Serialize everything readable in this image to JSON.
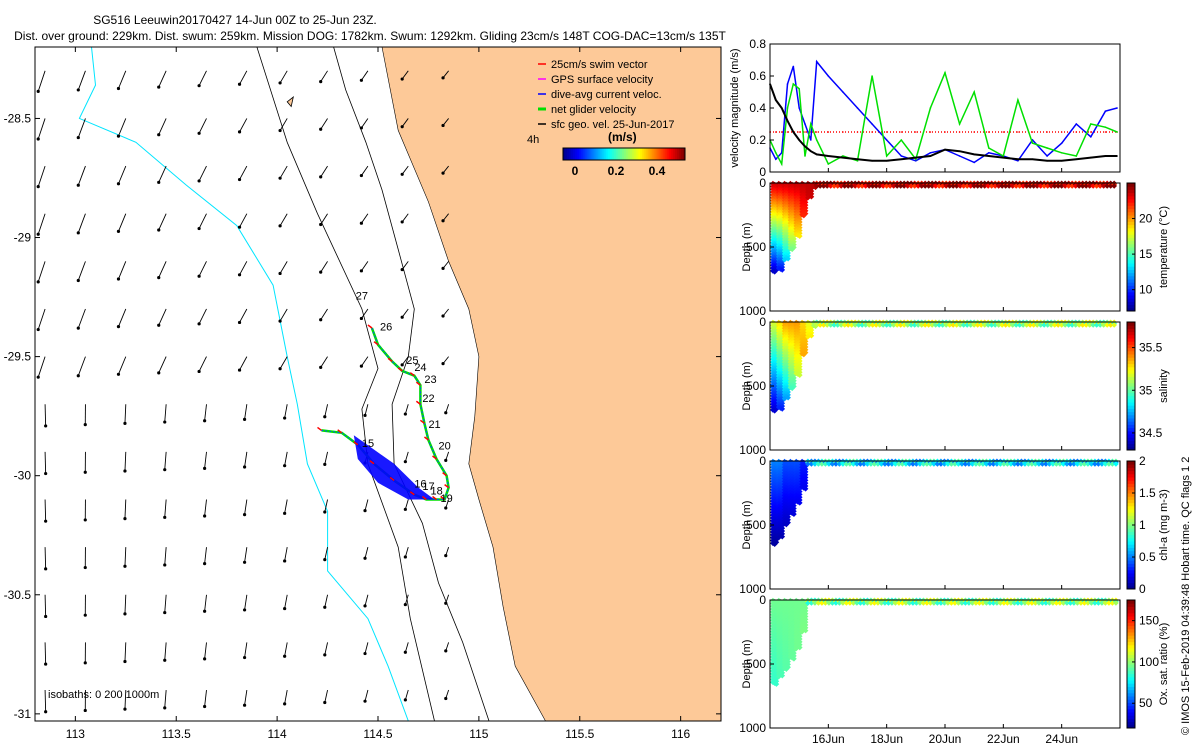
{
  "title": {
    "line1": "SG516 Leeuwin20170427 14-Jun 00Z to 25-Jun 23Z.",
    "line2": "Dist. over ground: 229km. Dist. swum: 259km. Mission DOG: 1782km. Swum: 1292km. Gliding 23cm/s 148T COG-DAC=13cm/s 135T"
  },
  "colors": {
    "land": "#FDC998",
    "isobath_200": "#00E5FF",
    "isobath_0_1000": "#000000",
    "swim": "#FF0000",
    "gps": "#FF00FF",
    "dac": "#0000FF",
    "net": "#00E000",
    "geo": "#000000"
  },
  "map": {
    "lon_ticks": [
      "113",
      "113.5",
      "114",
      "114.5",
      "115",
      "115.5",
      "116"
    ],
    "lat_ticks": [
      "-28.5",
      "-29",
      "-29.5",
      "-30",
      "-30.5",
      "-31"
    ],
    "isobaths_label": "isobaths: 0   200   1000m",
    "legend": [
      {
        "key": "swim",
        "label": "25cm/s swim vector"
      },
      {
        "key": "gps",
        "label": "GPS surface velocity"
      },
      {
        "key": "dac",
        "label": "dive-avg current veloc."
      },
      {
        "key": "net",
        "label": "net glider velocity"
      },
      {
        "key": "geo",
        "label": "sfc geo. vel. 25-Jun-2017"
      }
    ],
    "time_label": "4h",
    "colorbar_title": "(m/s)",
    "colorbar_ticks": [
      "0",
      "0.2",
      "0.4"
    ],
    "day_labels": [
      {
        "day": "27",
        "lon": 114.39,
        "lat": -29.26
      },
      {
        "day": "26",
        "lon": 114.51,
        "lat": -29.39
      },
      {
        "day": "25",
        "lon": 114.64,
        "lat": -29.53
      },
      {
        "day": "24",
        "lon": 114.68,
        "lat": -29.56
      },
      {
        "day": "23",
        "lon": 114.73,
        "lat": -29.61
      },
      {
        "day": "22",
        "lon": 114.72,
        "lat": -29.69
      },
      {
        "day": "21",
        "lon": 114.75,
        "lat": -29.8
      },
      {
        "day": "20",
        "lon": 114.8,
        "lat": -29.89
      },
      {
        "day": "19",
        "lon": 114.81,
        "lat": -30.11
      },
      {
        "day": "18",
        "lon": 114.76,
        "lat": -30.08
      },
      {
        "day": "17",
        "lon": 114.72,
        "lat": -30.06
      },
      {
        "day": "16",
        "lon": 114.68,
        "lat": -30.05
      },
      {
        "day": "15",
        "lon": 114.42,
        "lat": -29.88
      }
    ]
  },
  "chart_data": [
    {
      "type": "line",
      "title": "velocity magnitude",
      "ylabel": "velocity magnitude (m/s)",
      "ylim": [
        0,
        0.8
      ],
      "yticks": [
        "0",
        "0.2",
        "0.4",
        "0.6",
        "0.8"
      ],
      "x_days": [
        14,
        14.2,
        14.4,
        14.6,
        14.8,
        15.0,
        15.2,
        15.4,
        15.6,
        16.0,
        16.5,
        17.0,
        17.5,
        18.0,
        18.5,
        19.0,
        19.5,
        20.0,
        20.5,
        21.0,
        21.5,
        22.0,
        22.5,
        23.0,
        23.5,
        24.0,
        24.5,
        25.0,
        25.5,
        25.9
      ],
      "series": [
        {
          "name": "swim",
          "color": "#FF0000",
          "values": [
            0.25,
            0.25,
            0.25,
            0.25,
            0.25,
            0.25,
            0.25,
            0.25,
            0.25,
            0.25,
            0.25,
            0.25,
            0.25,
            0.25,
            0.25,
            0.25,
            0.25,
            0.25,
            0.25,
            0.25,
            0.25,
            0.25,
            0.25,
            0.25,
            0.25,
            0.25,
            0.25,
            0.25,
            0.25,
            0.25
          ]
        },
        {
          "name": "dive-avg current",
          "color": "#0000FF",
          "values": [
            0.15,
            0.08,
            0.12,
            0.55,
            0.66,
            0.4,
            0.3,
            0.2,
            0.69,
            0.6,
            0.5,
            0.4,
            0.3,
            0.2,
            0.1,
            0.07,
            0.12,
            0.14,
            0.1,
            0.06,
            0.12,
            0.1,
            0.07,
            0.2,
            0.1,
            0.18,
            0.3,
            0.22,
            0.38,
            0.4
          ]
        },
        {
          "name": "net glider",
          "color": "#00E000",
          "values": [
            0.2,
            0.12,
            0.05,
            0.4,
            0.55,
            0.52,
            0.1,
            0.3,
            0.2,
            0.05,
            0.1,
            0.07,
            0.6,
            0.1,
            0.2,
            0.08,
            0.4,
            0.62,
            0.3,
            0.5,
            0.15,
            0.1,
            0.45,
            0.18,
            0.15,
            0.12,
            0.1,
            0.3,
            0.28,
            0.25
          ]
        },
        {
          "name": "sfc geo. vel.",
          "color": "#000000",
          "values": [
            0.55,
            0.45,
            0.4,
            0.32,
            0.25,
            0.2,
            0.16,
            0.13,
            0.11,
            0.1,
            0.09,
            0.08,
            0.07,
            0.07,
            0.08,
            0.09,
            0.1,
            0.14,
            0.13,
            0.11,
            0.1,
            0.09,
            0.08,
            0.08,
            0.07,
            0.07,
            0.08,
            0.09,
            0.1,
            0.1
          ]
        }
      ]
    },
    {
      "type": "scatter",
      "ylabel": "Depth (m)",
      "cbar_label": "temperature (°C)",
      "ylim": [
        1000,
        0
      ],
      "yticks": [
        "0",
        "500",
        "1000"
      ],
      "cticks": [
        "10",
        "15",
        "20"
      ],
      "crange": [
        7,
        25
      ],
      "profiles": [
        {
          "day": 14.1,
          "max_depth": 700,
          "surface": 24,
          "bottom": 8
        },
        {
          "day": 14.3,
          "max_depth": 680,
          "surface": 24,
          "bottom": 9
        },
        {
          "day": 14.5,
          "max_depth": 600,
          "surface": 24,
          "bottom": 11
        },
        {
          "day": 14.7,
          "max_depth": 520,
          "surface": 24,
          "bottom": 13
        },
        {
          "day": 14.9,
          "max_depth": 420,
          "surface": 24,
          "bottom": 15
        },
        {
          "day": 15.1,
          "max_depth": 260,
          "surface": 24,
          "bottom": 19
        },
        {
          "day": 15.3,
          "max_depth": 120,
          "surface": 24,
          "bottom": 22
        },
        {
          "day": 15.5,
          "max_depth": 40,
          "surface": 24,
          "bottom": 23
        }
      ],
      "shallow_days_from": 15.6,
      "shallow_depth": 25,
      "shallow_value": 24
    },
    {
      "type": "scatter",
      "ylabel": "Depth (m)",
      "cbar_label": "salinity",
      "ylim": [
        1000,
        0
      ],
      "yticks": [
        "0",
        "500",
        "1000"
      ],
      "cticks": [
        "34.5",
        "35",
        "35.5"
      ],
      "crange": [
        34.3,
        35.8
      ],
      "profiles": [
        {
          "day": 14.1,
          "max_depth": 700,
          "surface": 35.2,
          "bottom": 34.4
        },
        {
          "day": 14.3,
          "max_depth": 680,
          "surface": 35.3,
          "bottom": 34.5
        },
        {
          "day": 14.5,
          "max_depth": 600,
          "surface": 35.4,
          "bottom": 34.6
        },
        {
          "day": 14.7,
          "max_depth": 520,
          "surface": 35.4,
          "bottom": 34.8
        },
        {
          "day": 14.9,
          "max_depth": 420,
          "surface": 35.4,
          "bottom": 35.0
        },
        {
          "day": 15.1,
          "max_depth": 260,
          "surface": 35.3,
          "bottom": 35.5
        },
        {
          "day": 15.3,
          "max_depth": 120,
          "surface": 35.2,
          "bottom": 35.6
        },
        {
          "day": 15.5,
          "max_depth": 40,
          "surface": 35.1,
          "bottom": 35.3
        }
      ],
      "shallow_days_from": 15.6,
      "shallow_depth": 25,
      "shallow_value": 35.1
    },
    {
      "type": "scatter",
      "ylabel": "Depth (m)",
      "cbar_label": "chl-a (mg m-3)",
      "ylim": [
        1000,
        0
      ],
      "yticks": [
        "0",
        "500",
        "1000"
      ],
      "cticks": [
        "0",
        "0.5",
        "1",
        "1.5",
        "2"
      ],
      "crange": [
        0,
        2
      ],
      "profiles": [
        {
          "day": 14.1,
          "max_depth": 650,
          "surface": 0.5,
          "bottom": 0.0
        },
        {
          "day": 14.3,
          "max_depth": 600,
          "surface": 0.5,
          "bottom": 0.0
        },
        {
          "day": 14.5,
          "max_depth": 500,
          "surface": 0.4,
          "bottom": 0.0
        },
        {
          "day": 14.7,
          "max_depth": 420,
          "surface": 0.4,
          "bottom": 0.0
        },
        {
          "day": 14.9,
          "max_depth": 330,
          "surface": 0.4,
          "bottom": 0.0
        },
        {
          "day": 15.1,
          "max_depth": 220,
          "surface": 0.3,
          "bottom": 0.0
        }
      ],
      "shallow_days_from": 15.3,
      "shallow_depth": 25,
      "shallow_value": 0.7
    },
    {
      "type": "scatter",
      "ylabel": "Depth (m)",
      "cbar_label": "Ox. sat. ratio (%)",
      "xlabel_ticks": [
        "16Jun",
        "18Jun",
        "20Jun",
        "22Jun",
        "24Jun"
      ],
      "xtick_days": [
        16,
        18,
        20,
        22,
        24
      ],
      "xlim_days": [
        14,
        26
      ],
      "ylim": [
        1000,
        0
      ],
      "yticks": [
        "0",
        "500",
        "1000"
      ],
      "cticks": [
        "50",
        "100",
        "150"
      ],
      "crange": [
        20,
        175
      ],
      "profiles": [
        {
          "day": 14.1,
          "max_depth": 660,
          "surface": 95,
          "bottom": 85
        },
        {
          "day": 14.3,
          "max_depth": 600,
          "surface": 95,
          "bottom": 88
        },
        {
          "day": 14.5,
          "max_depth": 540,
          "surface": 95,
          "bottom": 90
        },
        {
          "day": 14.7,
          "max_depth": 460,
          "surface": 95,
          "bottom": 92
        },
        {
          "day": 14.9,
          "max_depth": 380,
          "surface": 95,
          "bottom": 95
        },
        {
          "day": 15.1,
          "max_depth": 250,
          "surface": 95,
          "bottom": 100
        }
      ],
      "shallow_days_from": 15.3,
      "shallow_depth": 25,
      "shallow_value": 100
    }
  ],
  "side_text": "© IMOS 15-Feb-2019 04:39:48 Hobart time. QC flags 1  2"
}
